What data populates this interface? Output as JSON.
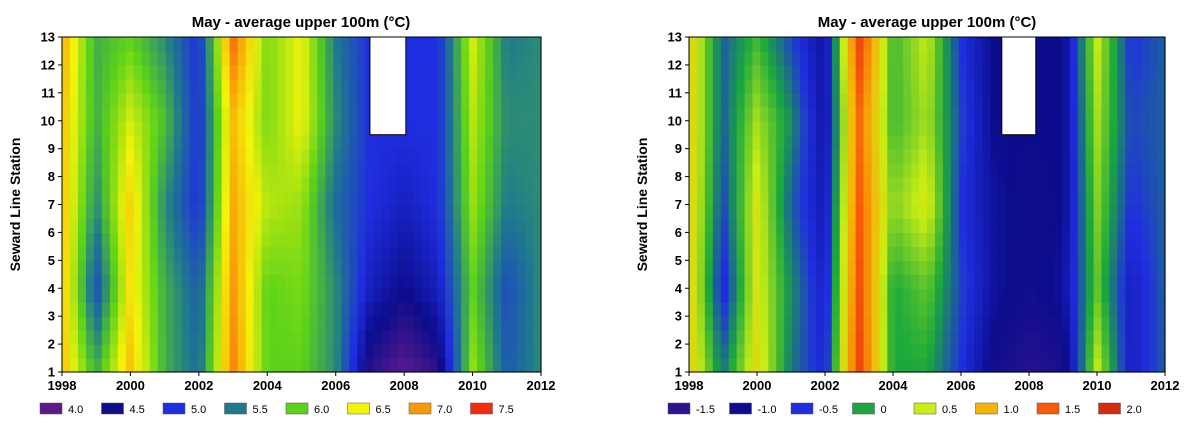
{
  "chart_data": [
    {
      "type": "heatmap",
      "title": "May - average upper 100m (°C)",
      "xlabel": "",
      "ylabel": "Seward Line Station",
      "xlim": [
        1998,
        2012
      ],
      "ylim": [
        1,
        13
      ],
      "x_ticks": [
        "1998",
        "2000",
        "2002",
        "2004",
        "2006",
        "2008",
        "2010",
        "2012"
      ],
      "y_ticks": [
        "1",
        "2",
        "3",
        "4",
        "5",
        "6",
        "7",
        "8",
        "9",
        "10",
        "11",
        "12",
        "13"
      ],
      "grid": false,
      "legend_position": "bottom",
      "legend": [
        {
          "label": "4.0",
          "color": "#5a1a8c"
        },
        {
          "label": "4.5",
          "color": "#0c0c8c"
        },
        {
          "label": "5.0",
          "color": "#1f2ee0"
        },
        {
          "label": "5.5",
          "color": "#1f7a8c"
        },
        {
          "label": "6.0",
          "color": "#5cd21a"
        },
        {
          "label": "6.5",
          "color": "#f4f40a"
        },
        {
          "label": "7.0",
          "color": "#f79a08"
        },
        {
          "label": "7.5",
          "color": "#f72b0c"
        }
      ],
      "years": [
        1998,
        1999,
        2000,
        2001,
        2002,
        2003,
        2004,
        2005,
        2006,
        2007,
        2008,
        2009,
        2010,
        2011,
        2012
      ],
      "stations": [
        1,
        4,
        7,
        10,
        13
      ],
      "values": [
        [
          6.8,
          5.8,
          6.8,
          5.8,
          5.4,
          7.1,
          6.0,
          6.0,
          5.6,
          4.3,
          4.0,
          4.3,
          6.2,
          5.3,
          5.6
        ],
        [
          6.8,
          5.2,
          6.6,
          5.8,
          5.3,
          7.0,
          6.0,
          6.1,
          5.6,
          4.8,
          4.5,
          4.8,
          6.0,
          5.2,
          5.6
        ],
        [
          6.8,
          5.6,
          6.7,
          5.6,
          5.0,
          6.9,
          6.3,
          6.2,
          5.4,
          5.0,
          4.8,
          5.0,
          6.2,
          5.5,
          5.6
        ],
        [
          6.8,
          5.8,
          6.4,
          5.9,
          5.0,
          6.8,
          6.1,
          6.5,
          5.6,
          5.0,
          null,
          5.0,
          6.3,
          5.6,
          5.6
        ],
        [
          6.9,
          5.8,
          6.0,
          5.6,
          5.0,
          7.2,
          6.1,
          6.5,
          5.5,
          5.0,
          null,
          5.0,
          6.4,
          5.5,
          5.6
        ]
      ]
    },
    {
      "type": "heatmap",
      "title": "May - average upper 100m (°C)",
      "xlabel": "",
      "ylabel": "Seward Line Station",
      "xlim": [
        1998,
        2012
      ],
      "ylim": [
        1,
        13
      ],
      "x_ticks": [
        "1998",
        "2000",
        "2002",
        "2004",
        "2006",
        "2008",
        "2010",
        "2012"
      ],
      "y_ticks": [
        "1",
        "2",
        "3",
        "4",
        "5",
        "6",
        "7",
        "8",
        "9",
        "10",
        "11",
        "12",
        "13"
      ],
      "grid": false,
      "legend_position": "bottom",
      "legend": [
        {
          "label": "-1.5",
          "color": "#2c1490"
        },
        {
          "label": "-1.0",
          "color": "#0c0c8c"
        },
        {
          "label": "-0.5",
          "color": "#1f2ee0"
        },
        {
          "label": "0",
          "color": "#1aa83c"
        },
        {
          "label": "0.5",
          "color": "#c8ee14"
        },
        {
          "label": "1.0",
          "color": "#f7b408"
        },
        {
          "label": "1.5",
          "color": "#f75a08"
        },
        {
          "label": "2.0",
          "color": "#d42a0c"
        }
      ],
      "years": [
        1998,
        1999,
        2000,
        2001,
        2002,
        2003,
        2004,
        2005,
        2006,
        2007,
        2008,
        2009,
        2010,
        2011,
        2012
      ],
      "stations": [
        1,
        4,
        7,
        10,
        13
      ],
      "values": [
        [
          0.8,
          -0.2,
          0.7,
          -0.2,
          -0.6,
          1.7,
          0.0,
          0.0,
          -0.5,
          -1.1,
          -1.4,
          -1.2,
          0.5,
          -0.7,
          -0.3
        ],
        [
          0.8,
          -0.6,
          0.6,
          -0.1,
          -0.7,
          1.6,
          0.0,
          0.2,
          -0.4,
          -0.9,
          -1.1,
          -0.9,
          0.2,
          -0.7,
          -0.3
        ],
        [
          0.8,
          -0.4,
          0.6,
          -0.3,
          -0.8,
          1.5,
          0.3,
          0.6,
          -0.5,
          -0.9,
          -1.1,
          -1.0,
          0.3,
          -0.5,
          -0.3
        ],
        [
          0.8,
          -0.3,
          0.4,
          -0.1,
          -0.9,
          1.4,
          0.1,
          0.4,
          -0.4,
          -1.0,
          null,
          -1.0,
          0.4,
          -0.4,
          -0.3
        ],
        [
          0.8,
          -0.3,
          0.1,
          -0.4,
          -0.9,
          1.7,
          0.1,
          0.5,
          -0.5,
          -1.0,
          null,
          -1.0,
          0.5,
          -0.5,
          -0.3
        ]
      ]
    }
  ]
}
